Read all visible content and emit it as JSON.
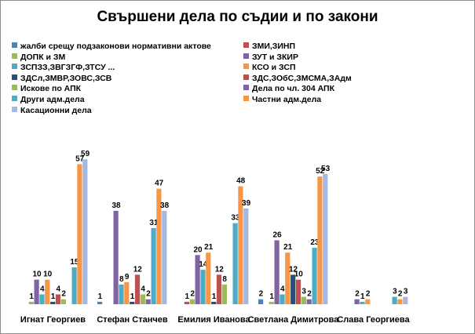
{
  "chart_data": {
    "type": "bar",
    "title": "Свършени дела по съдии и по закони",
    "categories": [
      "Игнат Георгиев",
      "Стефан Станчев",
      "Емилия Иванова",
      "Светлана Димитрова",
      "Слава Георгиева"
    ],
    "legend_position": "top",
    "grid": false,
    "ylim": [
      0,
      65
    ],
    "series": [
      {
        "name": "жалби срещу подзаконови  нормативни актове",
        "color": "#4f81bd",
        "values": [
          null,
          1,
          null,
          2,
          null
        ]
      },
      {
        "name": "ЗМИ,ЗИНП",
        "color": "#c0504d",
        "values": [
          null,
          null,
          1,
          null,
          null
        ]
      },
      {
        "name": "ДОПК и ЗМ",
        "color": "#9bbb59",
        "values": [
          1,
          null,
          2,
          1,
          null
        ]
      },
      {
        "name": "ЗУТ и ЗКИР",
        "color": "#8064a2",
        "values": [
          10,
          38,
          20,
          26,
          2
        ]
      },
      {
        "name": "ЗСПЗЗ,ЗВГЗГФ,ЗТСУ ...",
        "color": "#4bacc6",
        "values": [
          4,
          8,
          14,
          4,
          1
        ]
      },
      {
        "name": "КСО и ЗСП",
        "color": "#f79646",
        "values": [
          10,
          9,
          21,
          21,
          2
        ]
      },
      {
        "name": "ЗДСл,ЗМВР,ЗОВС,ЗСВ",
        "color": "#2c4d75",
        "values": [
          1,
          1,
          1,
          12,
          null
        ]
      },
      {
        "name": "ЗДС,ЗОбС,ЗМСМА,ЗАдм",
        "color": "#c0504d",
        "values": [
          4,
          12,
          12,
          10,
          null
        ]
      },
      {
        "name": "Искове по АПК",
        "color": "#9bbb59",
        "values": [
          2,
          4,
          8,
          3,
          null
        ]
      },
      {
        "name": "Дела по чл. 304 АПК",
        "color": "#8064a2",
        "values": [
          null,
          2,
          null,
          2,
          null
        ]
      },
      {
        "name": "Други адм.дела",
        "color": "#4bacc6",
        "values": [
          15,
          31,
          33,
          23,
          3
        ]
      },
      {
        "name": "Частни адм.дела",
        "color": "#f79646",
        "values": [
          57,
          47,
          48,
          52,
          2
        ]
      },
      {
        "name": "Касационни дела",
        "color": "#a5b9e0",
        "values": [
          59,
          38,
          39,
          53,
          3
        ]
      }
    ]
  }
}
